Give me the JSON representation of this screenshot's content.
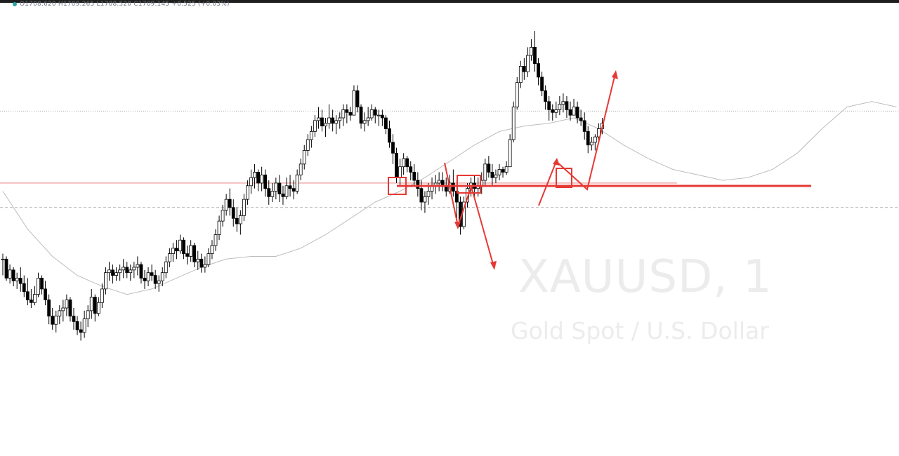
{
  "header": {
    "ohlc_text": "O1708.620 H1709.265 L1708.520 C1709.145 +0.525 (+0.03%)"
  },
  "watermark": {
    "symbol": "XAUUSD, 1",
    "name": "Gold Spot / U.S. Dollar"
  },
  "colors": {
    "candle": "#000000",
    "moving_average": "#bdbdbd",
    "annotation": "#e53935",
    "last_price_line": "#9e9e9e",
    "level_line": "#e57373"
  },
  "chart_data": {
    "type": "candlestick",
    "symbol": "XAUUSD",
    "timeframe": "1",
    "ylim": [
      1698.0,
      1712.0
    ],
    "candles_hlc": [
      [
        1703.9,
        1703.1,
        1703.7
      ],
      [
        1703.8,
        1702.9,
        1703.0
      ],
      [
        1703.5,
        1702.8,
        1703.3
      ],
      [
        1703.4,
        1702.7,
        1702.9
      ],
      [
        1703.2,
        1702.6,
        1703.0
      ],
      [
        1703.4,
        1702.5,
        1702.8
      ],
      [
        1703.1,
        1702.3,
        1702.5
      ],
      [
        1703.0,
        1702.0,
        1702.2
      ],
      [
        1702.6,
        1701.9,
        1702.1
      ],
      [
        1702.7,
        1702.0,
        1702.4
      ],
      [
        1703.2,
        1702.3,
        1703.0
      ],
      [
        1703.1,
        1702.4,
        1702.6
      ],
      [
        1702.9,
        1702.0,
        1702.2
      ],
      [
        1702.4,
        1701.3,
        1701.6
      ],
      [
        1701.9,
        1701.1,
        1701.3
      ],
      [
        1701.8,
        1701.0,
        1701.6
      ],
      [
        1702.0,
        1701.3,
        1701.8
      ],
      [
        1702.2,
        1701.4,
        1701.9
      ],
      [
        1702.4,
        1701.6,
        1702.2
      ],
      [
        1702.3,
        1701.4,
        1701.6
      ],
      [
        1701.9,
        1701.1,
        1701.4
      ],
      [
        1701.6,
        1700.9,
        1701.1
      ],
      [
        1701.4,
        1700.7,
        1701.0
      ],
      [
        1701.8,
        1700.8,
        1701.5
      ],
      [
        1702.0,
        1701.2,
        1701.8
      ],
      [
        1702.6,
        1701.5,
        1702.3
      ],
      [
        1702.4,
        1701.4,
        1701.7
      ],
      [
        1702.3,
        1701.6,
        1702.1
      ],
      [
        1702.8,
        1701.9,
        1702.6
      ],
      [
        1703.4,
        1702.4,
        1703.2
      ],
      [
        1703.6,
        1702.9,
        1703.3
      ],
      [
        1703.5,
        1702.8,
        1703.1
      ],
      [
        1703.4,
        1702.9,
        1703.2
      ],
      [
        1703.5,
        1702.9,
        1703.3
      ],
      [
        1703.7,
        1703.0,
        1703.4
      ],
      [
        1703.6,
        1703.0,
        1703.2
      ],
      [
        1703.5,
        1702.9,
        1703.3
      ],
      [
        1703.6,
        1703.0,
        1703.4
      ],
      [
        1703.8,
        1703.1,
        1703.5
      ],
      [
        1703.6,
        1702.8,
        1703.0
      ],
      [
        1703.3,
        1702.6,
        1702.9
      ],
      [
        1703.4,
        1702.7,
        1703.2
      ],
      [
        1703.5,
        1702.9,
        1703.1
      ],
      [
        1703.3,
        1702.6,
        1702.8
      ],
      [
        1703.1,
        1702.5,
        1702.9
      ],
      [
        1703.4,
        1702.7,
        1703.2
      ],
      [
        1703.8,
        1703.0,
        1703.6
      ],
      [
        1704.1,
        1703.4,
        1703.9
      ],
      [
        1704.3,
        1703.6,
        1704.1
      ],
      [
        1704.4,
        1703.7,
        1704.0
      ],
      [
        1704.6,
        1703.9,
        1704.4
      ],
      [
        1704.5,
        1703.7,
        1703.9
      ],
      [
        1704.2,
        1703.5,
        1703.8
      ],
      [
        1704.4,
        1703.6,
        1704.2
      ],
      [
        1704.3,
        1703.4,
        1703.6
      ],
      [
        1704.0,
        1703.3,
        1703.7
      ],
      [
        1703.9,
        1703.2,
        1703.4
      ],
      [
        1703.8,
        1703.2,
        1703.5
      ],
      [
        1704.1,
        1703.4,
        1703.9
      ],
      [
        1704.4,
        1703.7,
        1704.2
      ],
      [
        1704.8,
        1704.0,
        1704.6
      ],
      [
        1705.3,
        1704.4,
        1705.1
      ],
      [
        1705.7,
        1704.9,
        1705.5
      ],
      [
        1706.1,
        1705.3,
        1705.9
      ],
      [
        1706.3,
        1705.3,
        1705.6
      ],
      [
        1705.9,
        1704.9,
        1705.2
      ],
      [
        1705.6,
        1704.7,
        1705.0
      ],
      [
        1705.5,
        1704.6,
        1705.3
      ],
      [
        1706.1,
        1705.1,
        1705.9
      ],
      [
        1706.6,
        1705.7,
        1706.4
      ],
      [
        1707.0,
        1706.1,
        1706.7
      ],
      [
        1707.2,
        1706.3,
        1706.9
      ],
      [
        1707.0,
        1706.2,
        1706.5
      ],
      [
        1707.1,
        1706.2,
        1706.8
      ],
      [
        1707.0,
        1706.0,
        1706.3
      ],
      [
        1706.6,
        1705.7,
        1706.0
      ],
      [
        1706.5,
        1705.8,
        1706.2
      ],
      [
        1706.7,
        1705.9,
        1706.5
      ],
      [
        1706.8,
        1705.8,
        1706.1
      ],
      [
        1706.4,
        1705.7,
        1706.0
      ],
      [
        1706.7,
        1705.9,
        1706.4
      ],
      [
        1706.8,
        1706.0,
        1706.3
      ],
      [
        1706.6,
        1705.9,
        1706.2
      ],
      [
        1707.0,
        1706.1,
        1706.8
      ],
      [
        1707.4,
        1706.6,
        1707.2
      ],
      [
        1707.9,
        1707.0,
        1707.7
      ],
      [
        1708.3,
        1707.5,
        1708.1
      ],
      [
        1708.6,
        1707.8,
        1708.4
      ],
      [
        1709.0,
        1708.2,
        1708.8
      ],
      [
        1709.3,
        1708.5,
        1708.9
      ],
      [
        1709.2,
        1708.4,
        1708.6
      ],
      [
        1708.9,
        1708.2,
        1708.7
      ],
      [
        1709.4,
        1708.5,
        1708.9
      ],
      [
        1709.2,
        1708.4,
        1708.7
      ],
      [
        1709.0,
        1708.3,
        1708.8
      ],
      [
        1709.1,
        1708.5,
        1708.9
      ],
      [
        1709.4,
        1708.6,
        1709.2
      ],
      [
        1709.4,
        1708.7,
        1709.1
      ],
      [
        1709.3,
        1708.8,
        1709.0
      ],
      [
        1710.1,
        1709.0,
        1709.9
      ],
      [
        1710.1,
        1709.1,
        1709.3
      ],
      [
        1709.4,
        1708.5,
        1708.7
      ],
      [
        1709.1,
        1708.4,
        1708.8
      ],
      [
        1709.3,
        1708.6,
        1708.9
      ],
      [
        1709.4,
        1708.8,
        1709.2
      ],
      [
        1709.3,
        1708.7,
        1709.0
      ],
      [
        1709.2,
        1708.6,
        1709.0
      ],
      [
        1709.2,
        1708.6,
        1708.9
      ],
      [
        1709.0,
        1708.3,
        1708.5
      ],
      [
        1708.8,
        1707.8,
        1708.0
      ],
      [
        1708.3,
        1707.2,
        1707.6
      ],
      [
        1707.8,
        1706.5,
        1706.7
      ],
      [
        1707.4,
        1706.4,
        1707.1
      ],
      [
        1707.6,
        1706.8,
        1707.4
      ],
      [
        1707.5,
        1706.9,
        1707.1
      ],
      [
        1707.3,
        1706.6,
        1706.9
      ],
      [
        1707.2,
        1706.4,
        1706.6
      ],
      [
        1706.9,
        1706.0,
        1706.3
      ],
      [
        1706.6,
        1705.5,
        1705.8
      ],
      [
        1706.2,
        1705.4,
        1706.0
      ],
      [
        1706.5,
        1705.7,
        1706.2
      ],
      [
        1706.7,
        1705.9,
        1706.4
      ],
      [
        1706.8,
        1706.1,
        1706.5
      ],
      [
        1706.9,
        1706.2,
        1706.6
      ],
      [
        1706.9,
        1706.2,
        1706.4
      ],
      [
        1706.7,
        1706.0,
        1706.2
      ],
      [
        1706.8,
        1706.1,
        1706.5
      ],
      [
        1707.0,
        1706.0,
        1706.2
      ],
      [
        1706.6,
        1705.2,
        1705.8
      ],
      [
        1706.0,
        1704.6,
        1704.9
      ],
      [
        1706.0,
        1704.8,
        1705.8
      ],
      [
        1706.5,
        1705.6,
        1706.3
      ],
      [
        1706.7,
        1706.0,
        1706.5
      ],
      [
        1706.8,
        1706.0,
        1706.3
      ],
      [
        1706.7,
        1706.0,
        1706.4
      ],
      [
        1706.9,
        1706.1,
        1706.6
      ],
      [
        1707.4,
        1706.4,
        1707.2
      ],
      [
        1707.5,
        1706.7,
        1706.9
      ],
      [
        1707.2,
        1706.4,
        1706.7
      ],
      [
        1707.0,
        1706.5,
        1706.8
      ],
      [
        1707.2,
        1706.6,
        1707.0
      ],
      [
        1707.1,
        1706.7,
        1706.9
      ],
      [
        1707.3,
        1706.8,
        1707.1
      ],
      [
        1708.3,
        1707.1,
        1708.1
      ],
      [
        1709.5,
        1708.0,
        1709.3
      ],
      [
        1710.4,
        1709.2,
        1710.2
      ],
      [
        1711.0,
        1710.0,
        1710.8
      ],
      [
        1711.1,
        1710.3,
        1710.6
      ],
      [
        1711.5,
        1710.4,
        1711.2
      ],
      [
        1711.8,
        1711.0,
        1711.5
      ],
      [
        1712.1,
        1710.6,
        1710.9
      ],
      [
        1711.1,
        1710.1,
        1710.4
      ],
      [
        1710.6,
        1709.7,
        1709.9
      ],
      [
        1710.1,
        1709.2,
        1709.5
      ],
      [
        1709.7,
        1708.8,
        1709.2
      ],
      [
        1709.4,
        1708.8,
        1709.1
      ],
      [
        1709.5,
        1708.9,
        1709.2
      ],
      [
        1709.7,
        1709.0,
        1709.4
      ],
      [
        1709.8,
        1709.1,
        1709.5
      ],
      [
        1709.7,
        1708.9,
        1709.2
      ],
      [
        1709.5,
        1708.8,
        1709.0
      ],
      [
        1709.6,
        1709.0,
        1709.3
      ],
      [
        1709.5,
        1708.7,
        1708.9
      ],
      [
        1709.2,
        1708.6,
        1708.8
      ],
      [
        1709.1,
        1708.1,
        1708.4
      ],
      [
        1708.6,
        1707.6,
        1707.9
      ],
      [
        1708.2,
        1707.7,
        1708.0
      ],
      [
        1708.3,
        1707.7,
        1708.2
      ],
      [
        1708.7,
        1708.0,
        1708.5
      ],
      [
        1708.9,
        1708.3,
        1708.7
      ]
    ],
    "moving_average": [
      [
        0,
        1706.2
      ],
      [
        7,
        1704.8
      ],
      [
        14,
        1703.8
      ],
      [
        21,
        1703.1
      ],
      [
        28,
        1702.7
      ],
      [
        35,
        1702.4
      ],
      [
        42,
        1702.6
      ],
      [
        49,
        1703.0
      ],
      [
        56,
        1703.4
      ],
      [
        63,
        1703.7
      ],
      [
        70,
        1703.8
      ],
      [
        77,
        1703.8
      ],
      [
        84,
        1704.1
      ],
      [
        91,
        1704.6
      ],
      [
        98,
        1705.2
      ],
      [
        105,
        1705.8
      ],
      [
        112,
        1706.2
      ],
      [
        119,
        1706.7
      ],
      [
        126,
        1707.3
      ],
      [
        133,
        1707.9
      ],
      [
        140,
        1708.4
      ],
      [
        147,
        1708.6
      ],
      [
        154,
        1708.7
      ],
      [
        161,
        1708.9
      ],
      [
        168,
        1708.5
      ],
      [
        175,
        1707.9
      ],
      [
        182,
        1707.4
      ],
      [
        189,
        1707.0
      ],
      [
        196,
        1706.8
      ],
      [
        203,
        1706.6
      ],
      [
        210,
        1706.7
      ],
      [
        217,
        1707.0
      ],
      [
        224,
        1707.6
      ],
      [
        231,
        1708.5
      ],
      [
        238,
        1709.3
      ],
      [
        245,
        1709.5
      ],
      [
        252,
        1709.3
      ]
    ],
    "last_price": 1709.15,
    "horizontal_levels": [
      1707.45,
      1706.5,
      1705.6
    ]
  }
}
